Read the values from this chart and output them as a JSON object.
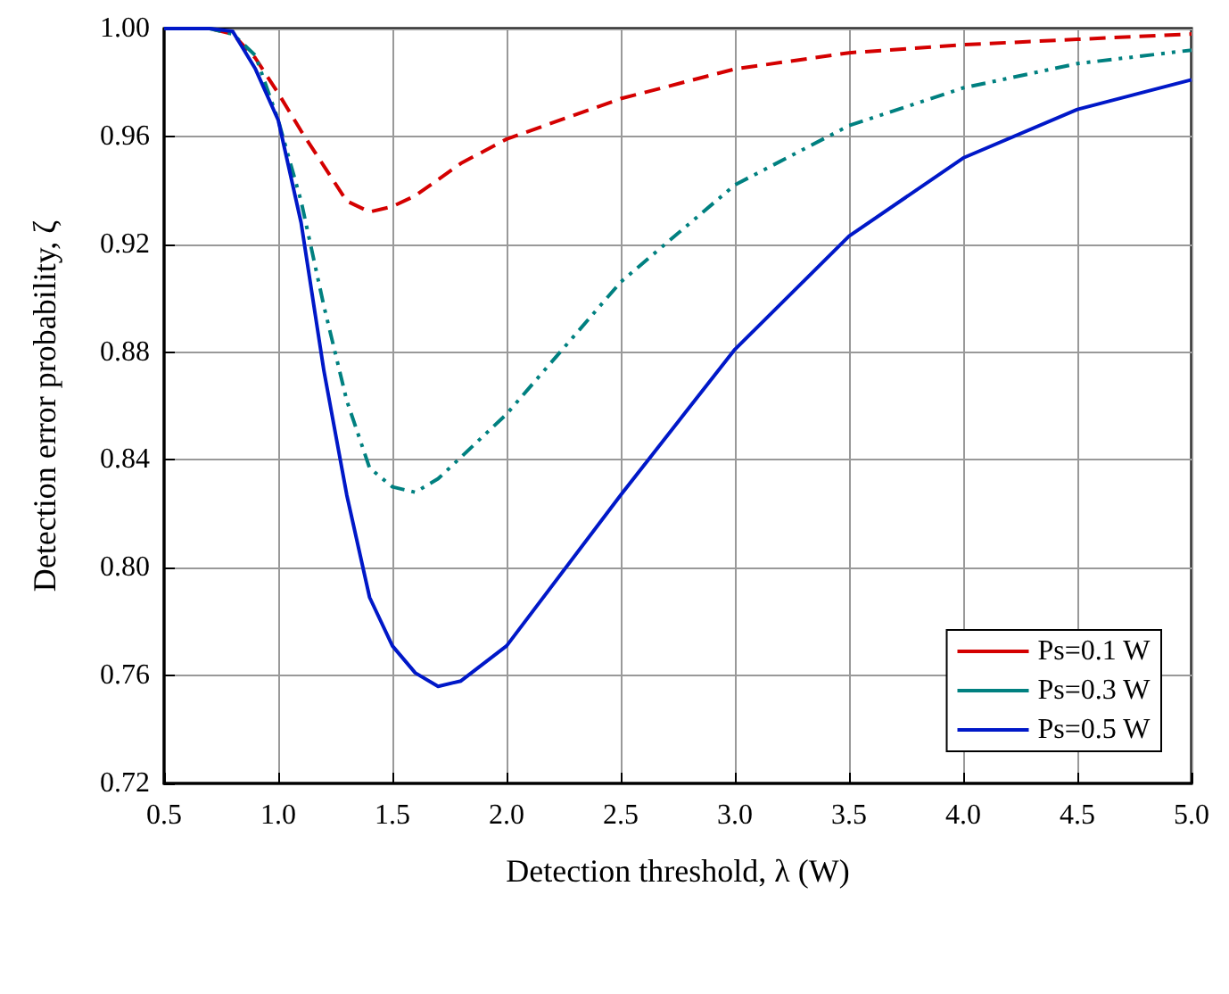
{
  "chart_data": {
    "type": "line",
    "xlabel": "Detection threshold, λ (W)",
    "ylabel": "Detection error probability, ζ",
    "x": [
      0.5,
      0.7,
      0.8,
      0.9,
      1.0,
      1.1,
      1.2,
      1.3,
      1.4,
      1.5,
      1.6,
      1.7,
      1.8,
      2.0,
      2.5,
      3.0,
      3.5,
      4.0,
      4.5,
      5.0
    ],
    "series": [
      {
        "name": "Ps=0.1 W",
        "color": "#d40000",
        "line_style": "dashed",
        "values": [
          1.0,
          1.0,
          0.998,
          0.989,
          0.976,
          0.962,
          0.949,
          0.936,
          0.932,
          0.934,
          0.938,
          0.944,
          0.95,
          0.959,
          0.974,
          0.985,
          0.991,
          0.994,
          0.996,
          0.998
        ]
      },
      {
        "name": "Ps=0.3 W",
        "color": "#008080",
        "line_style": "dotted",
        "values": [
          1.0,
          1.0,
          0.998,
          0.99,
          0.966,
          0.936,
          0.897,
          0.862,
          0.837,
          0.83,
          0.828,
          0.833,
          0.841,
          0.857,
          0.906,
          0.942,
          0.964,
          0.978,
          0.987,
          0.992
        ]
      },
      {
        "name": "Ps=0.5 W",
        "color": "#0018c8",
        "line_style": "solid",
        "values": [
          1.0,
          1.0,
          0.999,
          0.985,
          0.966,
          0.928,
          0.873,
          0.827,
          0.789,
          0.771,
          0.761,
          0.756,
          0.758,
          0.771,
          0.827,
          0.881,
          0.923,
          0.952,
          0.97,
          0.981
        ]
      }
    ],
    "xlim": [
      0.5,
      5.0
    ],
    "xticks": [
      0.5,
      {
        "value": 1,
        "label": "1.0"
      },
      1.5,
      {
        "value": 2,
        "label": "2.0"
      },
      2.5,
      {
        "value": 3,
        "label": "3.0"
      },
      3.5,
      {
        "value": 4,
        "label": "4.0"
      },
      4.5,
      {
        "value": 5,
        "label": "5.0"
      }
    ],
    "ylim": [
      0.72,
      1.0
    ],
    "yticks": [
      0.72,
      0.76,
      {
        "value": 0.8,
        "label": "0.80"
      },
      0.84,
      0.88,
      0.92,
      0.96,
      {
        "value": 1,
        "label": "1.00"
      }
    ],
    "grid": true,
    "legend": "bottom right",
    "marker": "none"
  }
}
